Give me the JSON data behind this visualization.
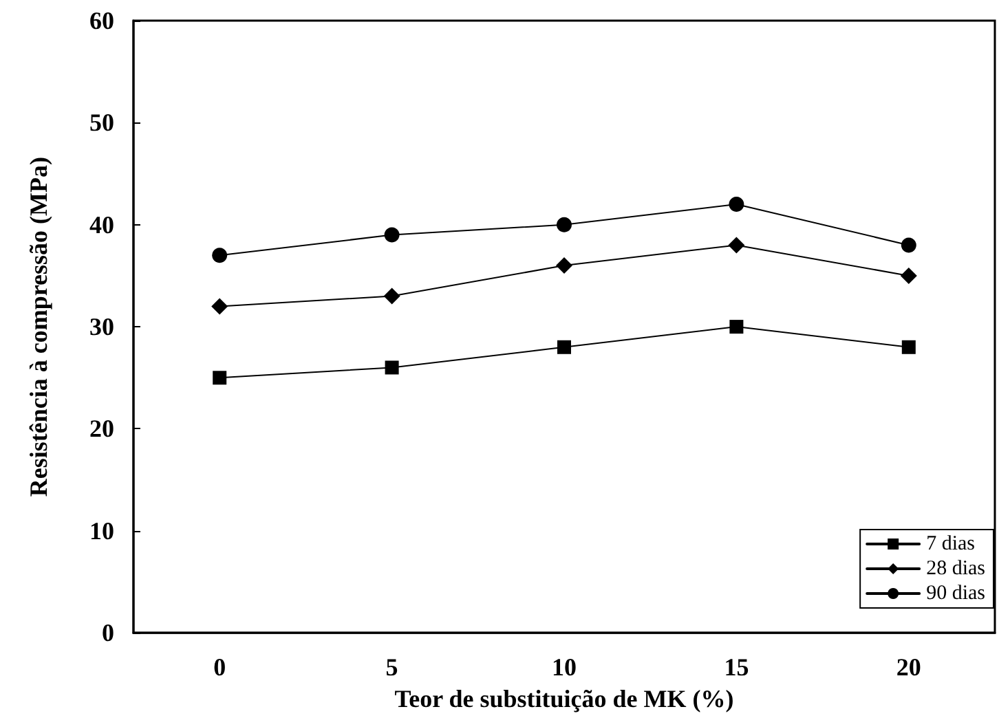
{
  "chart_data": {
    "type": "line",
    "xlabel": "Teor de substituição de MK (%)",
    "ylabel": "Resistência à compressão (MPa)",
    "categories": [
      "0",
      "5",
      "10",
      "15",
      "20"
    ],
    "series": [
      {
        "name": "7 dias",
        "color": "#000000",
        "marker": "square",
        "values": [
          25,
          26,
          28,
          30,
          28
        ]
      },
      {
        "name": "28 dias",
        "color": "#000000",
        "marker": "diamond",
        "values": [
          32,
          33,
          36,
          38,
          35
        ]
      },
      {
        "name": "90 dias",
        "color": "#000000",
        "marker": "circle",
        "values": [
          37,
          39,
          40,
          42,
          38
        ]
      }
    ],
    "ylim": [
      0,
      60
    ],
    "yticks": [
      0,
      10,
      20,
      30,
      40,
      50,
      60
    ],
    "grid": false,
    "legend": "bottom right",
    "line_style": "solid"
  }
}
